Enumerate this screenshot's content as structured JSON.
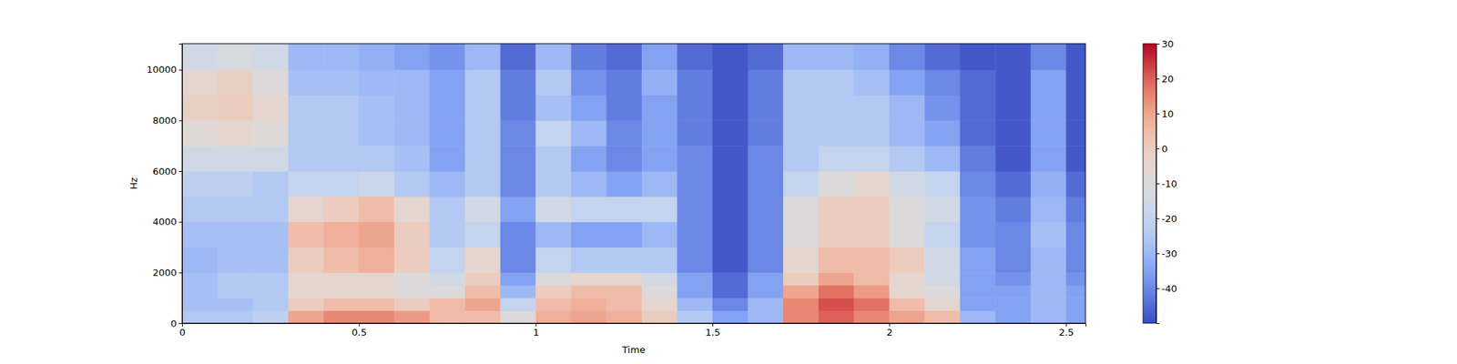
{
  "chart_data": {
    "type": "heatmap",
    "xlabel": "Time",
    "ylabel": "Hz",
    "xlim": [
      0,
      2.555
    ],
    "ylim": [
      0,
      11025
    ],
    "xticks": [
      0,
      0.5,
      1,
      1.5,
      2,
      2.5
    ],
    "yticks": [
      0,
      2000,
      4000,
      6000,
      8000,
      10000
    ],
    "x_edges": [
      0,
      0.1,
      0.2,
      0.3,
      0.4,
      0.5,
      0.6,
      0.7,
      0.8,
      0.9,
      1.0,
      1.1,
      1.2,
      1.3,
      1.4,
      1.5,
      1.6,
      1.7,
      1.8,
      1.9,
      2.0,
      2.1,
      2.2,
      2.3,
      2.4,
      2.5,
      2.555
    ],
    "y_edges": [
      0,
      500,
      1000,
      1500,
      2000,
      3000,
      4000,
      5000,
      6000,
      7000,
      8000,
      9000,
      10000,
      11025
    ],
    "z": [
      [
        -25,
        -25,
        -22,
        10,
        15,
        15,
        12,
        5,
        5,
        -10,
        8,
        10,
        8,
        0,
        -25,
        -35,
        -30,
        15,
        20,
        15,
        10,
        5,
        -30,
        -35,
        -30,
        -35
      ],
      [
        -28,
        -28,
        -25,
        0,
        5,
        5,
        0,
        5,
        10,
        -20,
        5,
        8,
        5,
        -5,
        -30,
        -40,
        -30,
        15,
        22,
        18,
        5,
        -5,
        -35,
        -35,
        -30,
        -35
      ],
      [
        -28,
        -25,
        -25,
        -5,
        -5,
        -5,
        -10,
        -10,
        5,
        -30,
        0,
        5,
        5,
        -10,
        -35,
        -45,
        -35,
        10,
        18,
        12,
        -5,
        -10,
        -35,
        -35,
        -30,
        -35
      ],
      [
        -28,
        -25,
        -25,
        -5,
        -5,
        -5,
        -10,
        -15,
        0,
        -35,
        -10,
        -5,
        -5,
        -15,
        -35,
        -45,
        -35,
        0,
        10,
        5,
        -5,
        -15,
        -35,
        -38,
        -30,
        -38
      ],
      [
        -30,
        -28,
        -28,
        0,
        5,
        8,
        0,
        -20,
        -5,
        -40,
        -20,
        -25,
        -25,
        -25,
        -40,
        -48,
        -40,
        -5,
        5,
        5,
        0,
        -15,
        -35,
        -40,
        -30,
        -40
      ],
      [
        -28,
        -28,
        -28,
        5,
        8,
        10,
        0,
        -25,
        -20,
        -40,
        -30,
        -35,
        -35,
        -30,
        -40,
        -48,
        -40,
        -10,
        0,
        0,
        -10,
        -20,
        -38,
        -40,
        -28,
        -40
      ],
      [
        -25,
        -25,
        -25,
        -5,
        0,
        5,
        -5,
        -25,
        -15,
        -35,
        -15,
        -20,
        -20,
        -20,
        -40,
        -48,
        -40,
        -10,
        0,
        0,
        -10,
        -15,
        -38,
        -42,
        -30,
        -42
      ],
      [
        -22,
        -22,
        -25,
        -20,
        -20,
        -18,
        -25,
        -30,
        -25,
        -40,
        -25,
        -30,
        -35,
        -30,
        -40,
        -48,
        -40,
        -20,
        -10,
        -5,
        -15,
        -20,
        -40,
        -45,
        -32,
        -45
      ],
      [
        -15,
        -15,
        -15,
        -25,
        -25,
        -25,
        -28,
        -35,
        -25,
        -40,
        -25,
        -35,
        -40,
        -35,
        -40,
        -48,
        -40,
        -25,
        -20,
        -20,
        -25,
        -30,
        -42,
        -48,
        -35,
        -48
      ],
      [
        -8,
        -5,
        -8,
        -25,
        -25,
        -28,
        -30,
        -35,
        -25,
        -40,
        -20,
        -30,
        -40,
        -35,
        -42,
        -48,
        -42,
        -25,
        -25,
        -25,
        -30,
        -35,
        -45,
        -48,
        -35,
        -48
      ],
      [
        -2,
        0,
        -5,
        -25,
        -25,
        -28,
        -30,
        -35,
        -25,
        -42,
        -28,
        -35,
        -42,
        -35,
        -42,
        -48,
        -42,
        -25,
        -25,
        -25,
        -30,
        -38,
        -45,
        -48,
        -35,
        -48
      ],
      [
        -5,
        -2,
        -10,
        -28,
        -28,
        -30,
        -30,
        -35,
        -25,
        -42,
        -25,
        -38,
        -42,
        -32,
        -42,
        -48,
        -42,
        -25,
        -25,
        -28,
        -35,
        -40,
        -45,
        -48,
        -35,
        -48
      ],
      [
        -15,
        -12,
        -15,
        -30,
        -30,
        -32,
        -35,
        -38,
        -30,
        -45,
        -30,
        -42,
        -45,
        -35,
        -45,
        -48,
        -45,
        -30,
        -30,
        -32,
        -40,
        -45,
        -48,
        -48,
        -40,
        -48
      ]
    ],
    "colorbar_range": [
      -50,
      30
    ],
    "colorbar_ticks": [
      -40,
      -30,
      -20,
      -10,
      0,
      10,
      20,
      30
    ]
  }
}
